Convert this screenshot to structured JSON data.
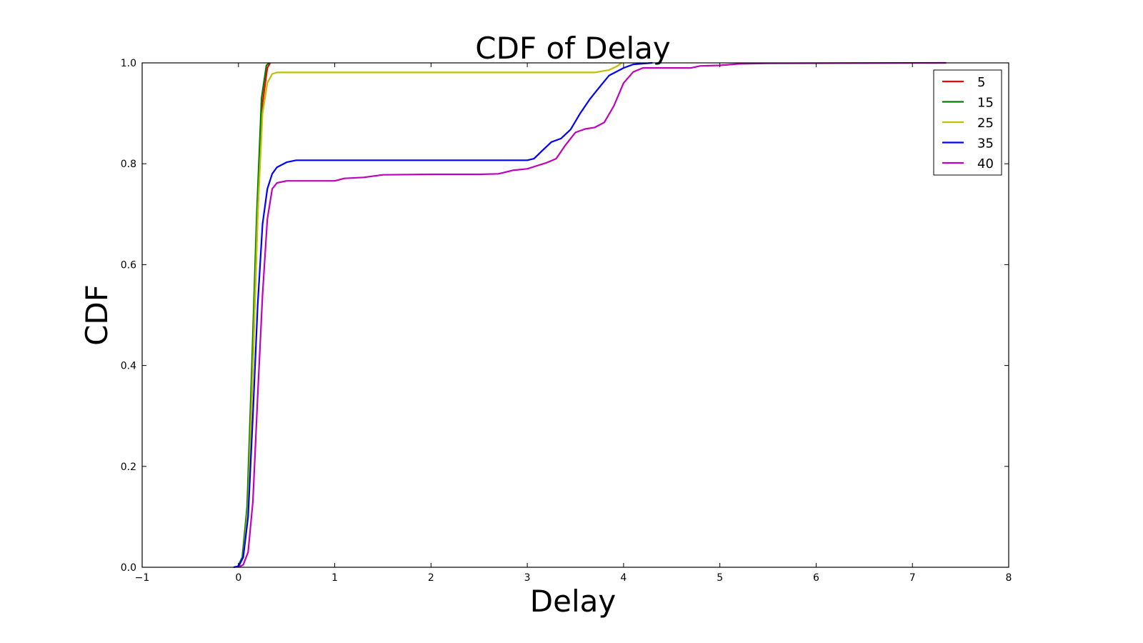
{
  "chart_data": {
    "type": "line",
    "title": "CDF of Delay",
    "xlabel": "Delay",
    "ylabel": "CDF",
    "xlim": [
      -1,
      8
    ],
    "ylim": [
      0.0,
      1.0
    ],
    "xticks": [
      "−1",
      "0",
      "1",
      "2",
      "3",
      "4",
      "5",
      "6",
      "7",
      "8"
    ],
    "xtick_values": [
      -1,
      0,
      1,
      2,
      3,
      4,
      5,
      6,
      7,
      8
    ],
    "yticks": [
      "0.0",
      "0.2",
      "0.4",
      "0.6",
      "0.8",
      "1.0"
    ],
    "ytick_values": [
      0.0,
      0.2,
      0.4,
      0.6,
      0.8,
      1.0
    ],
    "grid": false,
    "legend_position": "top-right",
    "series": [
      {
        "name": "5",
        "color": "#ff0000",
        "points": [
          [
            0.0,
            0.0
          ],
          [
            0.05,
            0.02
          ],
          [
            0.1,
            0.12
          ],
          [
            0.15,
            0.4
          ],
          [
            0.2,
            0.7
          ],
          [
            0.25,
            0.92
          ],
          [
            0.3,
            0.99
          ],
          [
            0.33,
            1.0
          ]
        ]
      },
      {
        "name": "15",
        "color": "#008000",
        "points": [
          [
            -0.01,
            0.0
          ],
          [
            0.04,
            0.02
          ],
          [
            0.09,
            0.12
          ],
          [
            0.14,
            0.4
          ],
          [
            0.19,
            0.7
          ],
          [
            0.24,
            0.93
          ],
          [
            0.29,
            0.995
          ],
          [
            0.32,
            1.0
          ]
        ]
      },
      {
        "name": "25",
        "color": "#bfbf00",
        "points": [
          [
            0.0,
            0.0
          ],
          [
            0.05,
            0.02
          ],
          [
            0.1,
            0.12
          ],
          [
            0.15,
            0.4
          ],
          [
            0.2,
            0.7
          ],
          [
            0.25,
            0.9
          ],
          [
            0.3,
            0.96
          ],
          [
            0.35,
            0.978
          ],
          [
            0.4,
            0.981
          ],
          [
            1.0,
            0.981
          ],
          [
            2.0,
            0.981
          ],
          [
            3.0,
            0.981
          ],
          [
            3.7,
            0.981
          ],
          [
            3.85,
            0.986
          ],
          [
            3.93,
            0.993
          ],
          [
            3.98,
            1.0
          ]
        ]
      },
      {
        "name": "35",
        "color": "#0000ff",
        "points": [
          [
            -0.05,
            0.0
          ],
          [
            0.0,
            0.002
          ],
          [
            0.05,
            0.02
          ],
          [
            0.1,
            0.1
          ],
          [
            0.15,
            0.3
          ],
          [
            0.2,
            0.52
          ],
          [
            0.25,
            0.68
          ],
          [
            0.3,
            0.75
          ],
          [
            0.35,
            0.78
          ],
          [
            0.4,
            0.793
          ],
          [
            0.5,
            0.803
          ],
          [
            0.6,
            0.807
          ],
          [
            1.0,
            0.807
          ],
          [
            2.0,
            0.807
          ],
          [
            3.0,
            0.807
          ],
          [
            3.07,
            0.81
          ],
          [
            3.15,
            0.825
          ],
          [
            3.25,
            0.843
          ],
          [
            3.35,
            0.85
          ],
          [
            3.45,
            0.868
          ],
          [
            3.55,
            0.9
          ],
          [
            3.65,
            0.928
          ],
          [
            3.75,
            0.952
          ],
          [
            3.85,
            0.975
          ],
          [
            4.0,
            0.99
          ],
          [
            4.1,
            0.997
          ],
          [
            4.3,
            1.0
          ]
        ]
      },
      {
        "name": "40",
        "color": "#bf00bf",
        "points": [
          [
            0.0,
            0.0
          ],
          [
            0.05,
            0.005
          ],
          [
            0.1,
            0.03
          ],
          [
            0.15,
            0.13
          ],
          [
            0.2,
            0.34
          ],
          [
            0.25,
            0.54
          ],
          [
            0.3,
            0.69
          ],
          [
            0.35,
            0.75
          ],
          [
            0.4,
            0.762
          ],
          [
            0.5,
            0.766
          ],
          [
            0.7,
            0.766
          ],
          [
            1.0,
            0.766
          ],
          [
            1.1,
            0.771
          ],
          [
            1.3,
            0.773
          ],
          [
            1.5,
            0.778
          ],
          [
            2.0,
            0.779
          ],
          [
            2.5,
            0.779
          ],
          [
            2.7,
            0.78
          ],
          [
            2.85,
            0.787
          ],
          [
            3.0,
            0.79
          ],
          [
            3.1,
            0.796
          ],
          [
            3.2,
            0.802
          ],
          [
            3.3,
            0.81
          ],
          [
            3.4,
            0.838
          ],
          [
            3.5,
            0.862
          ],
          [
            3.6,
            0.869
          ],
          [
            3.7,
            0.872
          ],
          [
            3.8,
            0.882
          ],
          [
            3.9,
            0.915
          ],
          [
            4.0,
            0.96
          ],
          [
            4.1,
            0.982
          ],
          [
            4.2,
            0.99
          ],
          [
            4.7,
            0.99
          ],
          [
            4.8,
            0.994
          ],
          [
            5.0,
            0.995
          ],
          [
            5.2,
            0.998
          ],
          [
            5.5,
            0.999
          ],
          [
            7.35,
            1.0
          ]
        ]
      }
    ]
  }
}
